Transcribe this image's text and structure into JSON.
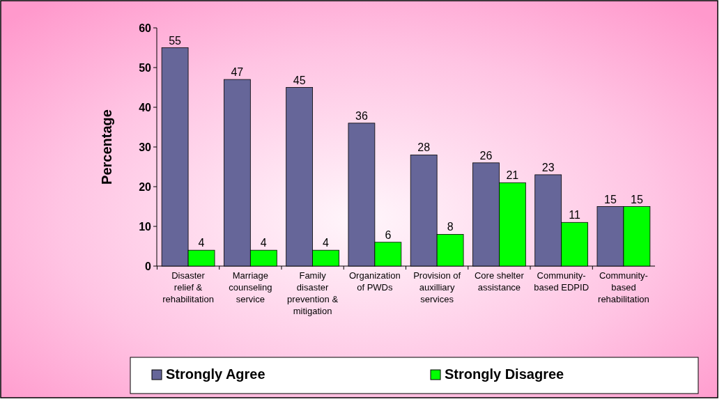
{
  "chart_data": {
    "type": "bar",
    "ylabel": "Percentage",
    "categories": [
      "Disaster relief & rehabilitation",
      "Marriage counseling service",
      "Family disaster prevention & mitigation",
      "Organization of PWDs",
      "Provision of auxilliary services",
      "Core shelter assistance",
      "Community-based EDPID",
      "Community-based rehabilitation"
    ],
    "series": [
      {
        "name": "Strongly Agree",
        "color": "#666699",
        "values": [
          55,
          47,
          45,
          36,
          28,
          26,
          23,
          15
        ]
      },
      {
        "name": "Strongly Disagree",
        "color": "#00ff00",
        "values": [
          4,
          4,
          4,
          6,
          8,
          21,
          11,
          15
        ]
      }
    ],
    "ylim": [
      0,
      60
    ],
    "yticks": [
      0,
      10,
      20,
      30,
      40,
      50,
      60
    ],
    "data_labels": true,
    "grid": false,
    "legend": "bottom"
  }
}
